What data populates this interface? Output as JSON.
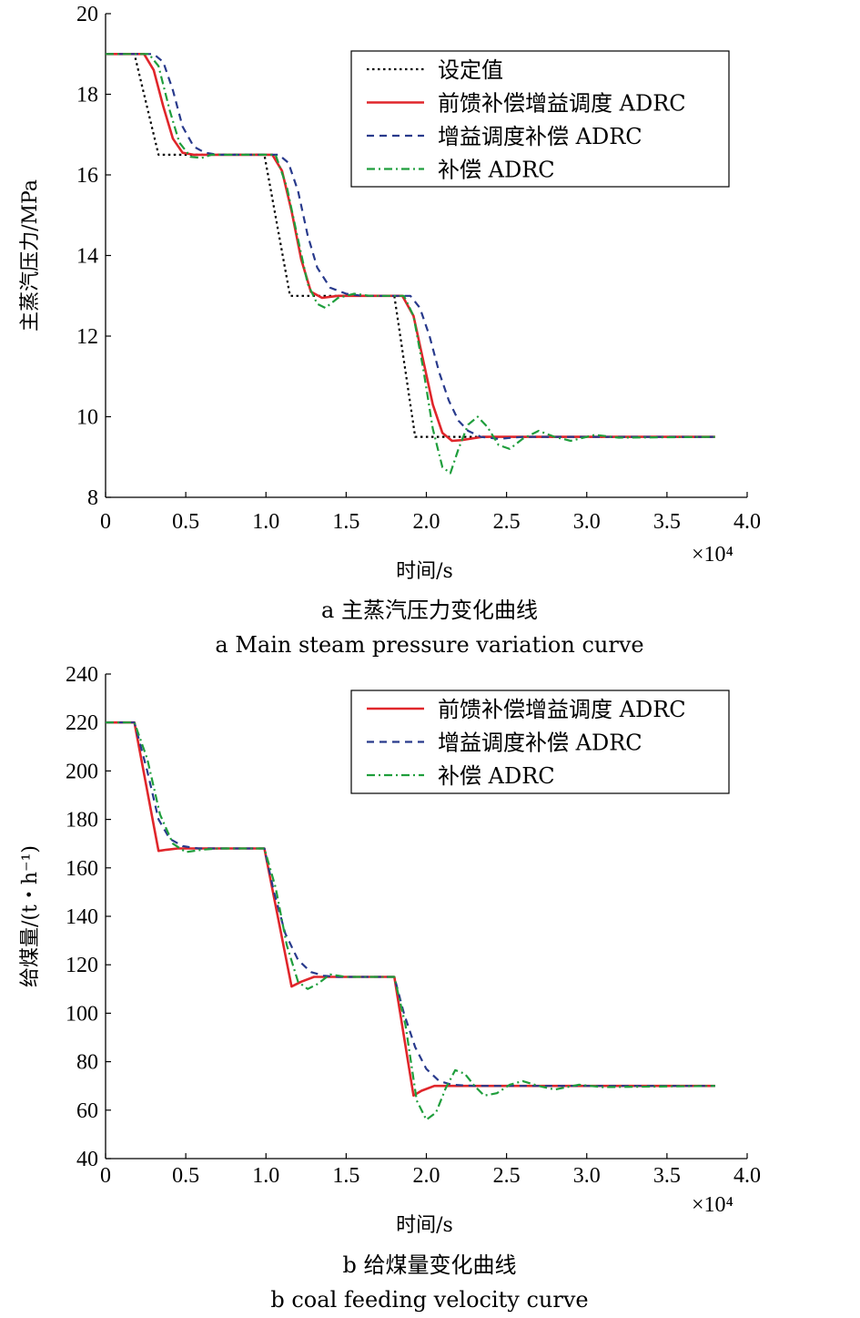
{
  "chart_data": [
    {
      "type": "line",
      "ylabel": "主蒸汽压力/MPa",
      "xlabel": "时间/s",
      "x_multiplier": "×10⁴",
      "xlim": [
        0,
        4.0
      ],
      "ylim": [
        8,
        20
      ],
      "xticks": [
        "0",
        "0.5",
        "1.0",
        "1.5",
        "2.0",
        "2.5",
        "3.0",
        "3.5",
        "4.0"
      ],
      "yticks": [
        "8",
        "10",
        "12",
        "14",
        "16",
        "18",
        "20"
      ],
      "caption_cn": "a  主蒸汽压力变化曲线",
      "caption_en": "a Main steam pressure variation curve",
      "legend_position": "top-right",
      "series": [
        {
          "name": "设定值",
          "color": "#000000",
          "style": "dotted",
          "x": [
            0,
            0.18,
            0.33,
            0.99,
            1.15,
            1.8,
            1.93,
            3.8
          ],
          "y": [
            19,
            19,
            16.5,
            16.5,
            13,
            13,
            9.5,
            9.5
          ]
        },
        {
          "name": "前馈补偿增益调度 ADRC",
          "color": "#e0262b",
          "style": "solid",
          "x": [
            0,
            0.24,
            0.3,
            0.36,
            0.42,
            0.48,
            0.55,
            1.04,
            1.1,
            1.16,
            1.22,
            1.28,
            1.35,
            1.45,
            1.85,
            1.92,
            1.98,
            2.04,
            2.1,
            2.16,
            2.22,
            2.35,
            2.6,
            3.8
          ],
          "y": [
            19,
            19,
            18.6,
            17.7,
            16.9,
            16.55,
            16.5,
            16.5,
            16.1,
            15.1,
            13.9,
            13.1,
            12.95,
            13,
            13,
            12.5,
            11.4,
            10.3,
            9.6,
            9.4,
            9.42,
            9.5,
            9.5,
            9.5
          ]
        },
        {
          "name": "增益调度补偿 ADRC",
          "color": "#283a8c",
          "style": "dashed",
          "x": [
            0,
            0.3,
            0.36,
            0.42,
            0.48,
            0.55,
            0.62,
            0.7,
            1.08,
            1.14,
            1.2,
            1.26,
            1.32,
            1.4,
            1.5,
            1.6,
            1.9,
            1.96,
            2.02,
            2.08,
            2.14,
            2.2,
            2.26,
            2.34,
            2.45,
            2.6,
            3.8
          ],
          "y": [
            19,
            19,
            18.8,
            18.1,
            17.2,
            16.7,
            16.55,
            16.5,
            16.5,
            16.3,
            15.6,
            14.5,
            13.7,
            13.2,
            13.05,
            13,
            13,
            12.7,
            12.0,
            11.1,
            10.4,
            9.9,
            9.65,
            9.5,
            9.45,
            9.5,
            9.5
          ]
        },
        {
          "name": "补偿 ADRC",
          "color": "#1f9e3c",
          "style": "dashdot",
          "x": [
            0,
            0.27,
            0.33,
            0.4,
            0.46,
            0.53,
            0.6,
            0.66,
            0.75,
            1.06,
            1.13,
            1.2,
            1.26,
            1.32,
            1.37,
            1.45,
            1.55,
            1.65,
            1.86,
            1.92,
            1.98,
            2.04,
            2.1,
            2.15,
            2.2,
            2.26,
            2.32,
            2.38,
            2.45,
            2.52,
            2.6,
            2.7,
            2.8,
            2.9,
            3.05,
            3.2,
            3.8
          ],
          "y": [
            19,
            19,
            18.7,
            17.6,
            16.8,
            16.45,
            16.42,
            16.5,
            16.5,
            16.5,
            15.7,
            14.4,
            13.3,
            12.8,
            12.7,
            12.95,
            13.05,
            13,
            13,
            12.5,
            11.2,
            9.7,
            8.75,
            8.6,
            9.2,
            9.8,
            10.0,
            9.75,
            9.3,
            9.2,
            9.45,
            9.65,
            9.5,
            9.4,
            9.55,
            9.48,
            9.5
          ]
        }
      ]
    },
    {
      "type": "line",
      "ylabel": "给煤量/(t・h⁻¹)",
      "xlabel": "时间/s",
      "x_multiplier": "×10⁴",
      "xlim": [
        0,
        4.0
      ],
      "ylim": [
        40,
        240
      ],
      "xticks": [
        "0",
        "0.5",
        "1.0",
        "1.5",
        "2.0",
        "2.5",
        "3.0",
        "3.5",
        "4.0"
      ],
      "yticks": [
        "40",
        "60",
        "80",
        "100",
        "120",
        "140",
        "160",
        "180",
        "200",
        "220",
        "240"
      ],
      "caption_cn": "b  给煤量变化曲线",
      "caption_en": "b coal feeding velocity curve",
      "legend_position": "top-right",
      "series": [
        {
          "name": "前馈补偿增益调度 ADRC",
          "color": "#e0262b",
          "style": "solid",
          "x": [
            0,
            0.18,
            0.33,
            0.38,
            0.45,
            0.55,
            0.99,
            1.16,
            1.22,
            1.3,
            1.4,
            1.8,
            1.92,
            1.97,
            2.05,
            2.2,
            3.8
          ],
          "y": [
            220,
            220,
            167,
            167.5,
            168,
            168,
            168,
            111,
            113,
            115,
            115,
            115,
            66,
            68,
            70,
            70,
            70
          ]
        },
        {
          "name": "增益调度补偿 ADRC",
          "color": "#283a8c",
          "style": "dashed",
          "x": [
            0,
            0.18,
            0.26,
            0.33,
            0.4,
            0.48,
            0.58,
            0.99,
            1.05,
            1.12,
            1.2,
            1.28,
            1.36,
            1.45,
            1.8,
            1.86,
            1.93,
            2.0,
            2.08,
            2.16,
            2.3,
            3.8
          ],
          "y": [
            220,
            220,
            200,
            180,
            172,
            169,
            168,
            168,
            150,
            133,
            122,
            117,
            115.5,
            115,
            115,
            100,
            86,
            77,
            72,
            70.5,
            70,
            70
          ]
        },
        {
          "name": "补偿 ADRC",
          "color": "#1f9e3c",
          "style": "dashdot",
          "x": [
            0,
            0.18,
            0.26,
            0.34,
            0.42,
            0.5,
            0.6,
            0.7,
            0.99,
            1.06,
            1.13,
            1.2,
            1.26,
            1.32,
            1.4,
            1.5,
            1.6,
            1.8,
            1.87,
            1.94,
            2.0,
            2.06,
            2.12,
            2.18,
            2.24,
            2.3,
            2.36,
            2.44,
            2.52,
            2.6,
            2.7,
            2.8,
            2.95,
            3.1,
            3.8
          ],
          "y": [
            220,
            220,
            205,
            182,
            170,
            166.5,
            167.5,
            168,
            168,
            152,
            128,
            113,
            110,
            112,
            116,
            115,
            115,
            115,
            95,
            64,
            56,
            59,
            69,
            76.5,
            75,
            70,
            66,
            67,
            70.5,
            72,
            70,
            68.5,
            70.5,
            69.5,
            70
          ]
        }
      ]
    }
  ]
}
